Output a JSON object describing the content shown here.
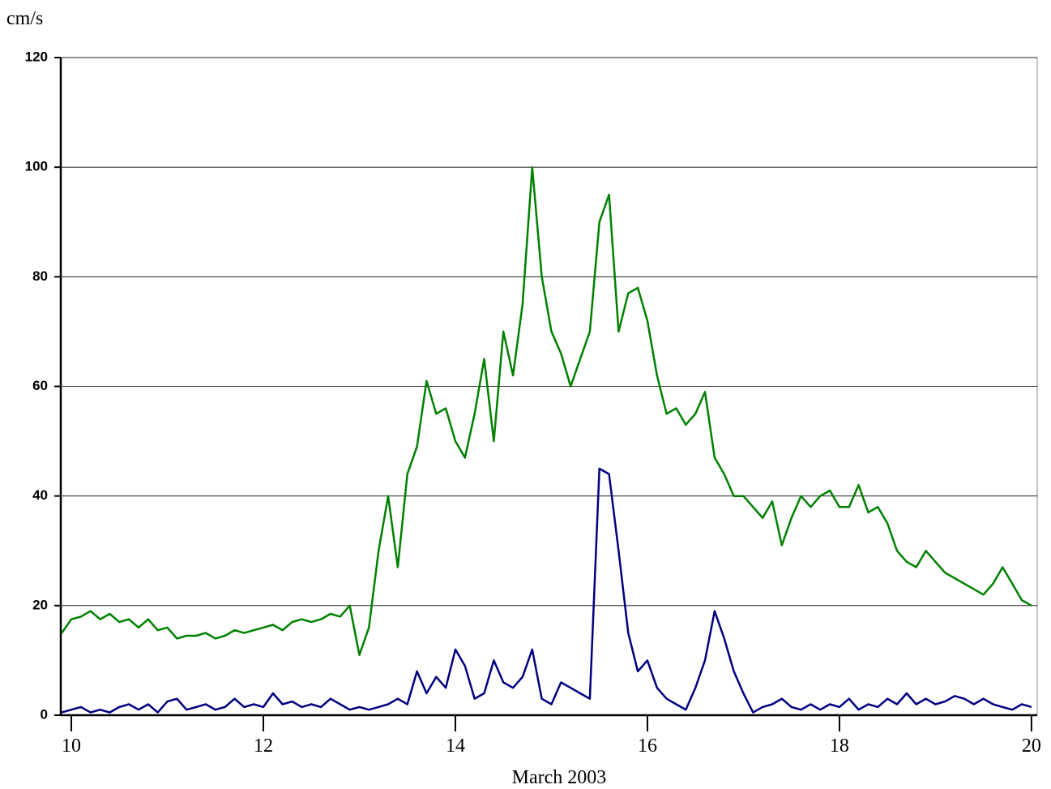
{
  "chart_data": {
    "type": "line",
    "y_label": "cm/s",
    "x_label": "March 2003",
    "x": [
      9.9,
      10.0,
      10.1,
      10.2,
      10.3,
      10.4,
      10.5,
      10.6,
      10.7,
      10.8,
      10.9,
      11.0,
      11.1,
      11.2,
      11.3,
      11.4,
      11.5,
      11.6,
      11.7,
      11.8,
      11.9,
      12.0,
      12.1,
      12.2,
      12.3,
      12.4,
      12.5,
      12.6,
      12.7,
      12.8,
      12.9,
      13.0,
      13.1,
      13.2,
      13.3,
      13.4,
      13.5,
      13.6,
      13.7,
      13.8,
      13.9,
      14.0,
      14.1,
      14.2,
      14.3,
      14.4,
      14.5,
      14.6,
      14.7,
      14.8,
      14.9,
      15.0,
      15.1,
      15.2,
      15.3,
      15.4,
      15.5,
      15.6,
      15.7,
      15.8,
      15.9,
      16.0,
      16.1,
      16.2,
      16.3,
      16.4,
      16.5,
      16.6,
      16.7,
      16.8,
      16.9,
      17.0,
      17.1,
      17.2,
      17.3,
      17.4,
      17.5,
      17.6,
      17.7,
      17.8,
      17.9,
      18.0,
      18.1,
      18.2,
      18.3,
      18.4,
      18.5,
      18.6,
      18.7,
      18.8,
      18.9,
      19.0,
      19.1,
      19.2,
      19.3,
      19.4,
      19.5,
      19.6,
      19.7,
      19.8,
      19.9,
      20.0
    ],
    "series": [
      {
        "color": "#008000",
        "values": [
          15,
          17.5,
          18,
          19,
          17.5,
          18.5,
          17,
          17.5,
          16,
          17.5,
          15.5,
          16,
          14,
          14.5,
          14.5,
          15,
          14,
          14.5,
          15.5,
          15,
          15.5,
          16,
          16.5,
          15.5,
          17,
          17.5,
          17,
          17.5,
          18.5,
          18,
          20,
          11,
          16,
          30,
          40,
          27,
          44,
          49,
          61,
          55,
          56,
          50,
          47,
          55,
          65,
          50,
          70,
          62,
          75,
          100,
          80,
          70,
          66,
          60,
          65,
          70,
          90,
          95,
          70,
          77,
          78,
          72,
          62,
          55,
          56,
          53,
          55,
          59,
          47,
          44,
          40,
          40,
          38,
          36,
          39,
          31,
          36,
          40,
          38,
          40,
          41,
          38,
          38,
          42,
          37,
          38,
          35,
          30,
          28,
          27,
          30,
          28,
          26,
          25,
          24,
          23,
          22,
          24,
          27,
          24,
          21,
          20
        ]
      },
      {
        "color": "#000080",
        "values": [
          0.5,
          1,
          1.5,
          0.5,
          1,
          0.5,
          1.5,
          2,
          1,
          2,
          0.5,
          2.5,
          3,
          1,
          1.5,
          2,
          1,
          1.5,
          3,
          1.5,
          2,
          1.5,
          4,
          2,
          2.5,
          1.5,
          2,
          1.5,
          3,
          2,
          1,
          1.5,
          1,
          1.5,
          2,
          3,
          2,
          8,
          4,
          7,
          5,
          12,
          9,
          3,
          4,
          10,
          6,
          5,
          7,
          12,
          3,
          2,
          6,
          5,
          4,
          3,
          45,
          44,
          30,
          15,
          8,
          10,
          5,
          3,
          2,
          1,
          5,
          10,
          19,
          14,
          8,
          4,
          0.5,
          1.5,
          2,
          3,
          1.5,
          1,
          2,
          1,
          2,
          1.5,
          3,
          1,
          2,
          1.5,
          3,
          2,
          4,
          2,
          3,
          2,
          2.5,
          3.5,
          3,
          2,
          3,
          2,
          1.5,
          1,
          2,
          1.5
        ]
      }
    ],
    "xlim": [
      9.89,
      20.06
    ],
    "xticks": [
      10,
      12,
      14,
      16,
      18,
      20
    ],
    "ylim": [
      0,
      120
    ],
    "yticks": [
      0,
      20,
      40,
      60,
      80,
      100,
      120
    ],
    "grid": true
  }
}
